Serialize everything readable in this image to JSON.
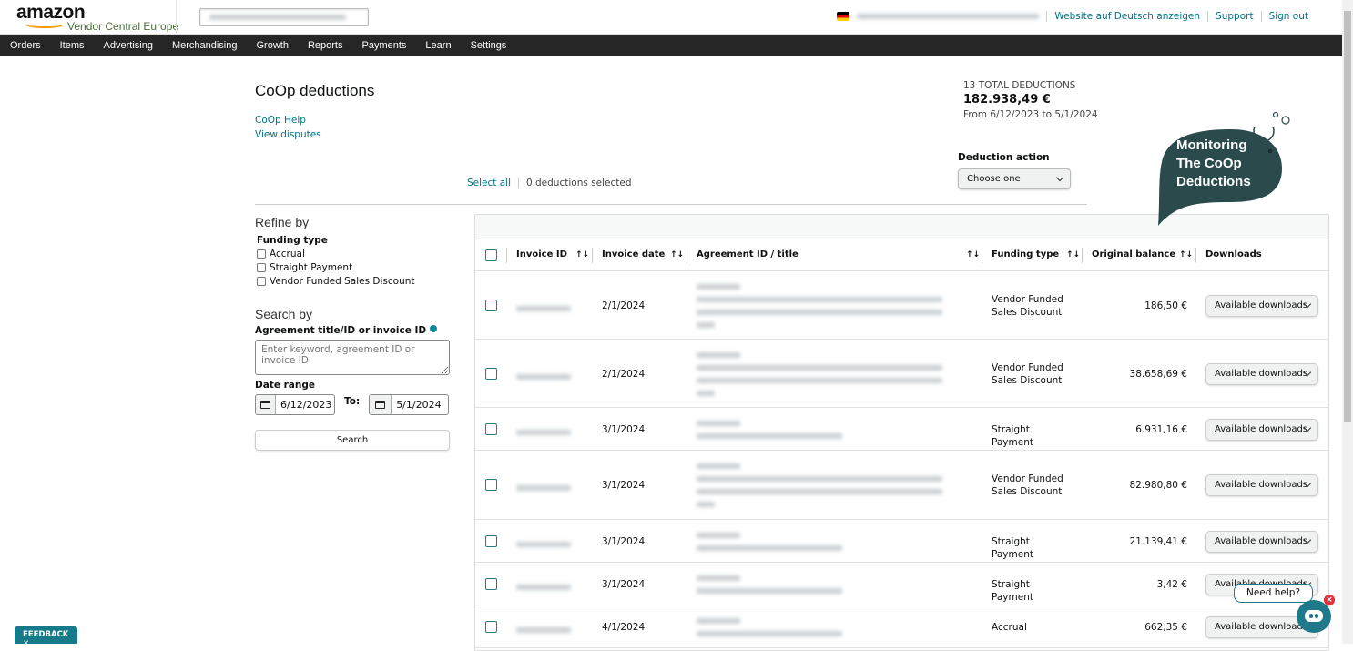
{
  "header": {
    "logo_text": "amazon",
    "logo_sub": "Vendor Central Europe",
    "links": [
      "Website auf Deutsch anzeigen",
      "Support",
      "Sign out"
    ]
  },
  "nav": [
    "Orders",
    "Items",
    "Advertising",
    "Merchandising",
    "Growth",
    "Reports",
    "Payments",
    "Learn",
    "Settings"
  ],
  "page": {
    "title": "CoOp deductions",
    "help_link": "CoOp Help",
    "disputes_link": "View disputes"
  },
  "totals": {
    "count_label": "13 TOTAL DEDUCTIONS",
    "amount": "182.938,49 €",
    "range": "From 6/12/2023 to 5/1/2024"
  },
  "deduction_action": {
    "label": "Deduction action",
    "value": "Choose one"
  },
  "selection": {
    "select_all": "Select all",
    "selected": "0 deductions selected"
  },
  "refine": {
    "title": "Refine by",
    "funding_label": "Funding type",
    "options": [
      "Accrual",
      "Straight Payment",
      "Vendor Funded Sales Discount"
    ]
  },
  "search": {
    "title": "Search by",
    "field_label": "Agreement title/ID or invoice ID",
    "placeholder": "Enter keyword, agreement ID or invoice ID",
    "date_label": "Date range",
    "from": "6/12/2023",
    "to_label": "To:",
    "to": "5/1/2024",
    "button": "Search"
  },
  "table": {
    "columns": [
      "Invoice ID",
      "Invoice date",
      "Agreement ID / title",
      "Funding type",
      "Original balance",
      "Downloads"
    ],
    "download_label": "Available downloads",
    "rows": [
      {
        "date": "2/1/2024",
        "funding": "Vendor Funded Sales Discount",
        "balance": "186,50 €"
      },
      {
        "date": "2/1/2024",
        "funding": "Vendor Funded Sales Discount",
        "balance": "38.658,69 €"
      },
      {
        "date": "3/1/2024",
        "funding": "Straight Payment",
        "balance": "6.931,16 €"
      },
      {
        "date": "3/1/2024",
        "funding": "Vendor Funded Sales Discount",
        "balance": "82.980,80 €"
      },
      {
        "date": "3/1/2024",
        "funding": "Straight Payment",
        "balance": "21.139,41 €"
      },
      {
        "date": "3/1/2024",
        "funding": "Straight Payment",
        "balance": "3,42 €"
      },
      {
        "date": "4/1/2024",
        "funding": "Accrual",
        "balance": "662,35 €"
      }
    ]
  },
  "overlay": {
    "bubble_text": "Monitoring The CoOp Deductions",
    "need_help": "Need help?",
    "feedback": "FEEDBACK ✕"
  },
  "colors": {
    "accent": "#007185",
    "nav_bg": "#262626",
    "bubble": "#2a4a4c",
    "chat": "#1e7a8a"
  }
}
